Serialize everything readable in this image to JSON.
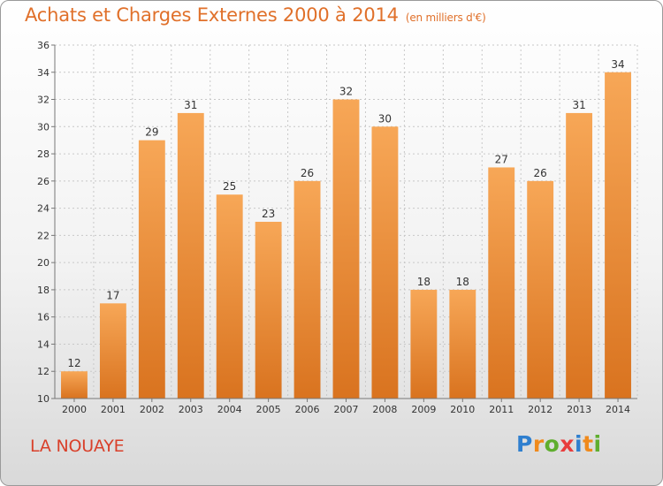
{
  "header": {
    "title": "Achats et Charges Externes 2000 à 2014",
    "unit": "(en milliers d'€)"
  },
  "footer": {
    "town": "LA NOUAYE",
    "logo": "Proxiti"
  },
  "colors": {
    "bar_top": "#f7a757",
    "bar_bottom": "#d9731f",
    "title": "#e0702a",
    "town": "#d9402a"
  },
  "chart_data": {
    "type": "bar",
    "title": "Achats et Charges Externes 2000 à 2014",
    "subtitle": "(en milliers d'€)",
    "categories": [
      "2000",
      "2001",
      "2002",
      "2003",
      "2004",
      "2005",
      "2006",
      "2007",
      "2008",
      "2009",
      "2010",
      "2011",
      "2012",
      "2013",
      "2014"
    ],
    "values": [
      12,
      17,
      29,
      31,
      25,
      23,
      26,
      32,
      30,
      18,
      18,
      27,
      26,
      31,
      34
    ],
    "ylim": [
      10,
      36
    ],
    "yticks": [
      10,
      12,
      14,
      16,
      18,
      20,
      22,
      24,
      26,
      28,
      30,
      32,
      34,
      36
    ],
    "grid": true,
    "legend": "none"
  }
}
